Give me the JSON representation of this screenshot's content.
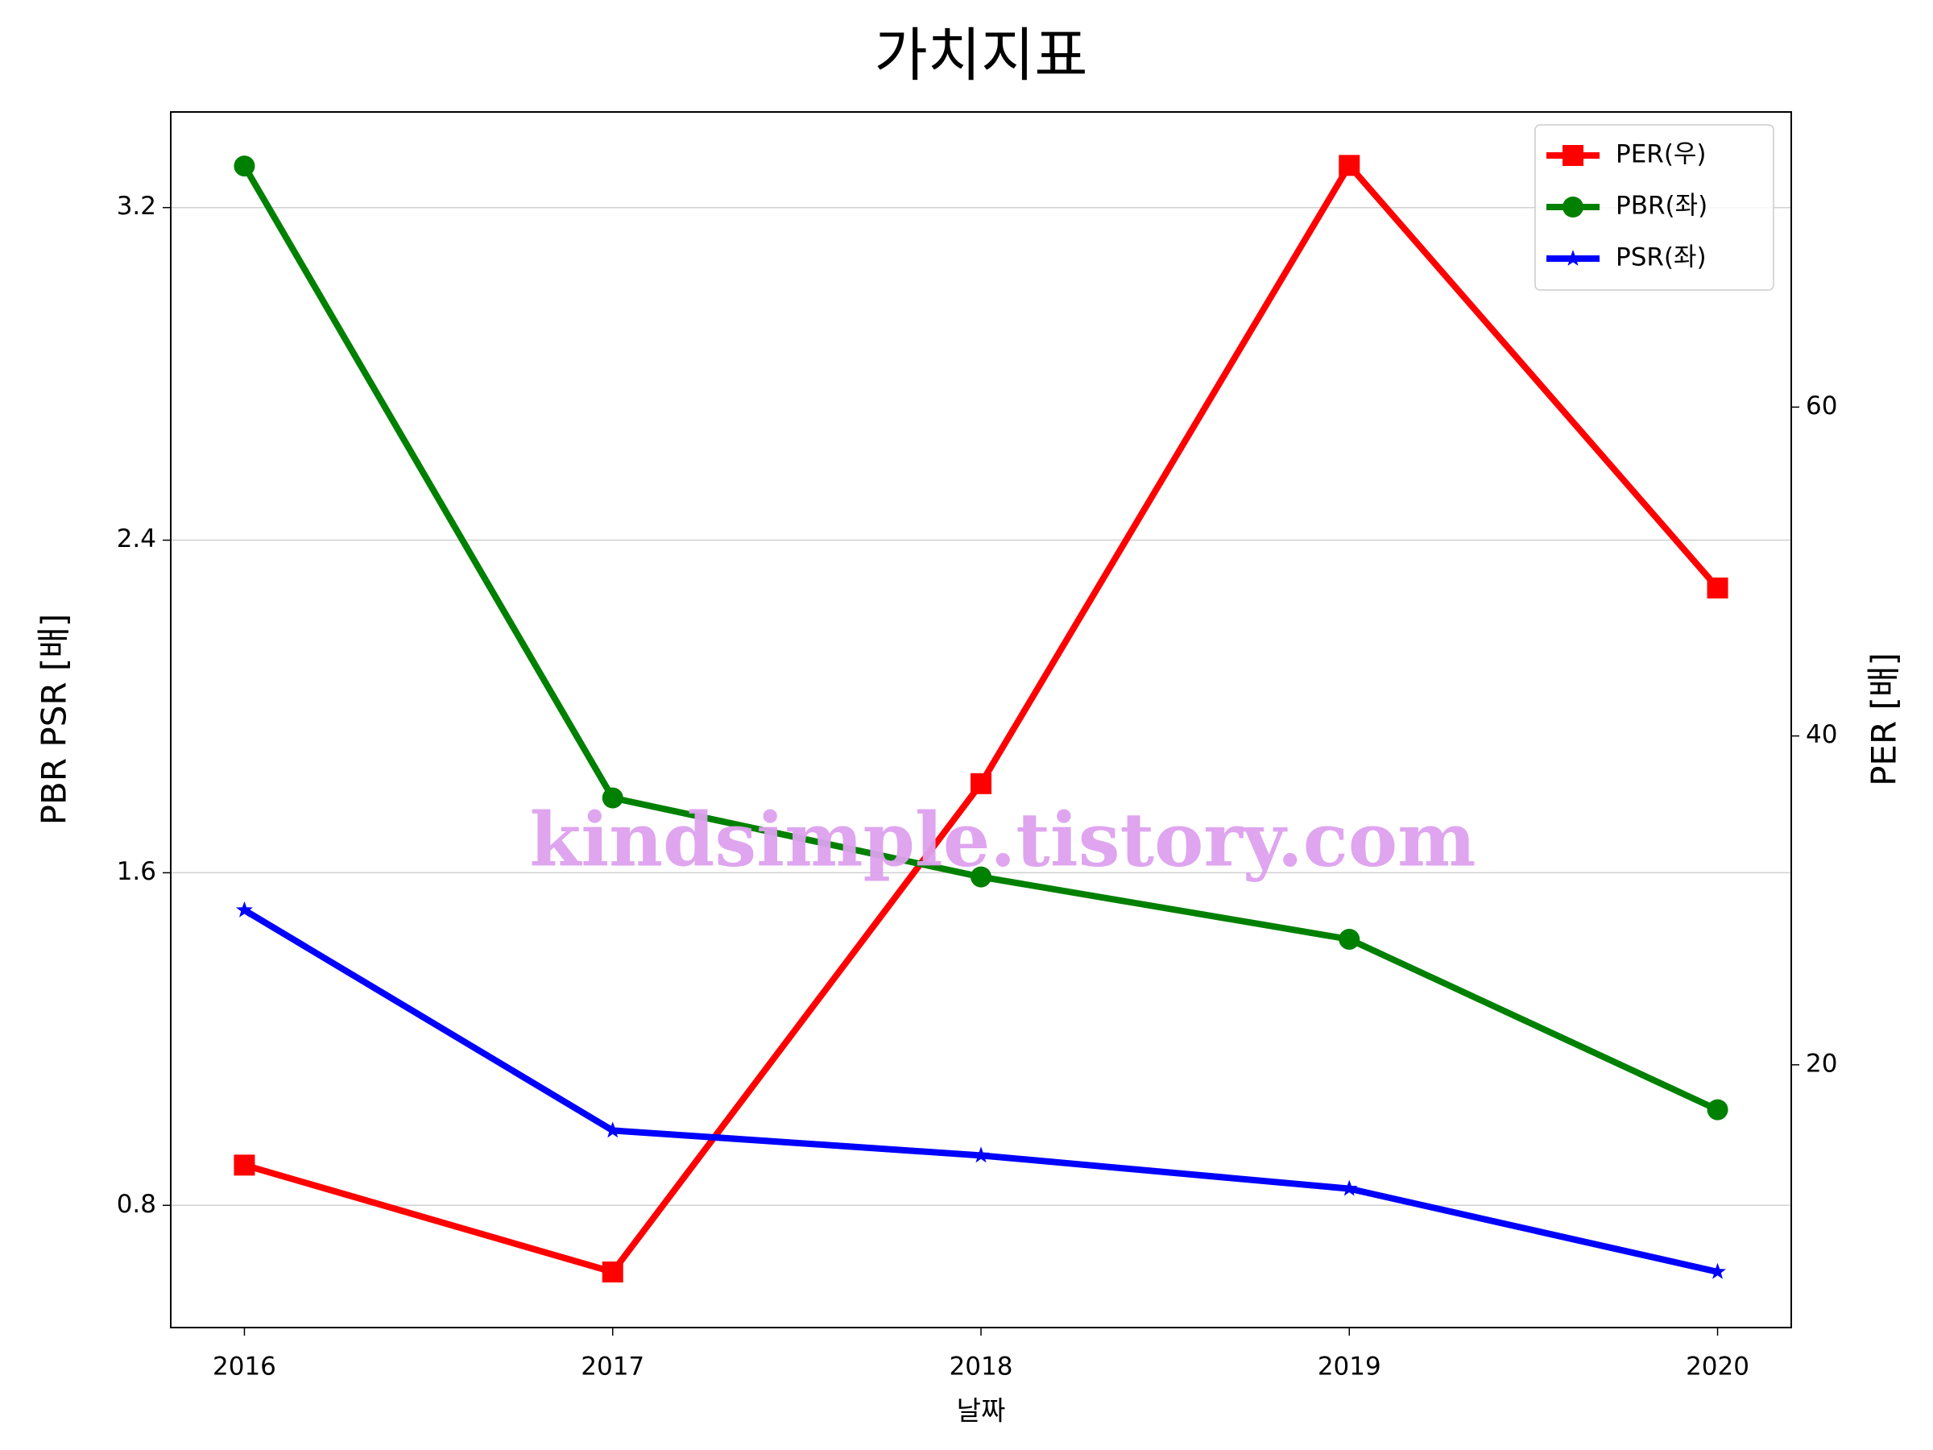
{
  "chart_data": {
    "type": "line",
    "title": "가치지표",
    "xlabel": "날짜",
    "ylabel": "PBR PSR [배]",
    "y2label": "PER [배]",
    "ylabel_color": "#008000",
    "y2label_color": "#ff0000",
    "x": [
      2016,
      2017,
      2018,
      2019,
      2020
    ],
    "xlim": [
      2015.8,
      2020.2
    ],
    "xticks": [
      2016,
      2017,
      2018,
      2019,
      2020
    ],
    "ylim": [
      0.506,
      3.43
    ],
    "yticks": [
      0.8,
      1.6,
      2.4,
      3.2
    ],
    "y2lim": [
      4.02,
      77.95
    ],
    "y2ticks": [
      20,
      40,
      60
    ],
    "grid": true,
    "legend": "upper right",
    "annotation": "kindsimple.tistory.com",
    "series": [
      {
        "name": "PER(우)",
        "color": "#ff0000",
        "marker": "square",
        "axis": "y2",
        "values": [
          13.9,
          7.4,
          37.1,
          74.7,
          49.0
        ]
      },
      {
        "name": "PBR(좌)",
        "color": "#008000",
        "marker": "circle",
        "values": [
          3.3,
          1.78,
          1.59,
          1.44,
          1.03
        ]
      },
      {
        "name": "PSR(좌)",
        "color": "#0000ff",
        "marker": "star",
        "values": [
          1.51,
          0.98,
          0.92,
          0.84,
          0.64
        ]
      }
    ]
  }
}
